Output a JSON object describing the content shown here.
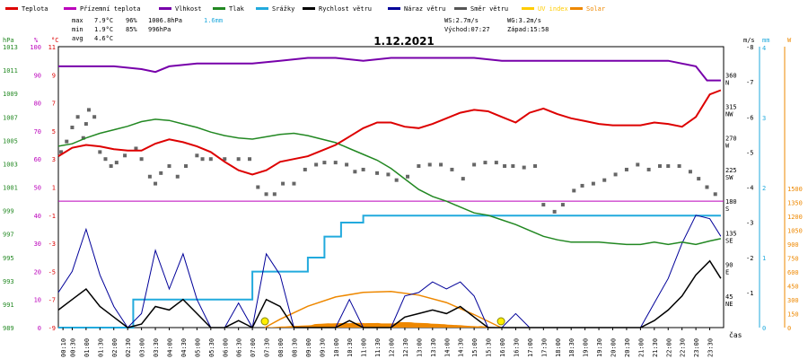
{
  "legend": [
    {
      "label": "Teplota",
      "color": "#dd0000"
    },
    {
      "label": "Přízemní teplota",
      "color": "#bb00bb"
    },
    {
      "label": "Vlhkost",
      "color": "#7700aa"
    },
    {
      "label": "Tlak",
      "color": "#228822"
    },
    {
      "label": "Srážky",
      "color": "#22aadd"
    },
    {
      "label": "Rychlost větru",
      "color": "#000000"
    },
    {
      "label": "Náraz větru",
      "color": "#000099"
    },
    {
      "label": "Směr větru",
      "color": "#555555"
    },
    {
      "label": "UV index",
      "color": "#ffcc00"
    },
    {
      "label": "Solar",
      "color": "#ee8800"
    }
  ],
  "stats": {
    "max_label": "max",
    "max_temp": "7.9°C",
    "max_hum": "96%",
    "max_press": "1006.8hPa",
    "max_rain": "1.6mm",
    "min_label": "min",
    "min_temp": "1.9°C",
    "min_hum": "85%",
    "min_press": "996hPa",
    "avg_label": "avg",
    "avg_temp": "4.6°C"
  },
  "wind_stats": {
    "ws": "WS:2.7m/s",
    "wg": "WG:3.2m/s",
    "sunrise": "Východ:07:27",
    "sunset": "Západ:15:58"
  },
  "chart_data": {
    "type": "line",
    "title": "1.12.2021",
    "xlabel": "čas",
    "x_ticks": [
      "00:10",
      "00:30",
      "01:00",
      "01:30",
      "02:00",
      "02:30",
      "03:00",
      "03:30",
      "04:00",
      "04:30",
      "05:00",
      "05:30",
      "06:00",
      "06:30",
      "07:00",
      "07:30",
      "08:00",
      "08:30",
      "09:00",
      "09:30",
      "10:00",
      "10:30",
      "11:00",
      "11:30",
      "12:00",
      "12:30",
      "13:00",
      "13:30",
      "14:00",
      "14:30",
      "15:00",
      "15:30",
      "16:00",
      "16:30",
      "17:00",
      "17:30",
      "18:00",
      "18:30",
      "19:00",
      "19:30",
      "20:00",
      "20:30",
      "21:00",
      "21:30",
      "22:00",
      "22:30",
      "23:00",
      "23:30"
    ],
    "axes": {
      "pressure": {
        "unit": "hPa",
        "ylim": [
          989,
          1013
        ],
        "ticks": [
          989,
          991,
          993,
          995,
          997,
          999,
          1001,
          1003,
          1005,
          1007,
          1009,
          1011,
          1013
        ]
      },
      "humidity": {
        "unit": "%",
        "ylim": [
          0,
          100
        ],
        "ticks": [
          0,
          10,
          20,
          30,
          40,
          50,
          60,
          70,
          80,
          90,
          100
        ]
      },
      "temperature": {
        "unit": "°C",
        "ylim": [
          -9,
          11
        ],
        "ticks": [
          -9,
          -7,
          -5,
          -3,
          -1,
          1,
          3,
          5,
          7,
          9,
          11
        ]
      },
      "wind_dir": {
        "ticks": [
          {
            "v": 45,
            "l": "NE"
          },
          {
            "v": 90,
            "l": "E"
          },
          {
            "v": 135,
            "l": "SE"
          },
          {
            "v": 180,
            "l": "S"
          },
          {
            "v": 225,
            "l": "SW"
          },
          {
            "v": 270,
            "l": "W"
          },
          {
            "v": 315,
            "l": "NW"
          },
          {
            "v": 360,
            "l": "N"
          }
        ]
      },
      "wind_speed": {
        "unit": "m/s",
        "ylim": [
          0,
          8
        ],
        "ticks": [
          1,
          2,
          3,
          4,
          5,
          6,
          7,
          8
        ]
      },
      "rain": {
        "unit": "mm",
        "ylim": [
          0,
          4
        ],
        "ticks": [
          0,
          1,
          2,
          3,
          4
        ]
      },
      "solar": {
        "unit": "W",
        "ylim": [
          0,
          1500
        ],
        "ticks": [
          0,
          150,
          300,
          450,
          600,
          750,
          900,
          1050,
          1200,
          1350,
          1500
        ]
      }
    },
    "ground_temp_value": 0,
    "sunrise_hour": 7.45,
    "sunset_hour": 15.97,
    "series": [
      {
        "name": "Teplota",
        "axis": "temperature",
        "color": "#dd0000",
        "x": [
          0,
          0.5,
          1,
          1.5,
          2,
          2.5,
          3,
          3.5,
          4,
          4.5,
          5,
          5.5,
          6,
          6.5,
          7,
          7.5,
          8,
          8.5,
          9,
          9.5,
          10,
          10.5,
          11,
          11.5,
          12,
          12.5,
          13,
          13.5,
          14,
          14.5,
          15,
          15.5,
          16,
          16.5,
          17,
          17.5,
          18,
          18.5,
          19,
          19.5,
          20,
          20.5,
          21,
          21.5,
          22,
          22.5,
          23,
          23.5,
          23.9
        ],
        "y": [
          3.2,
          3.8,
          4.0,
          3.9,
          3.7,
          3.6,
          3.6,
          4.1,
          4.4,
          4.2,
          3.9,
          3.5,
          2.8,
          2.2,
          1.9,
          2.2,
          2.8,
          3.0,
          3.2,
          3.6,
          4.0,
          4.6,
          5.2,
          5.6,
          5.6,
          5.3,
          5.2,
          5.5,
          5.9,
          6.3,
          6.5,
          6.4,
          6.0,
          5.6,
          6.3,
          6.6,
          6.2,
          5.9,
          5.7,
          5.5,
          5.4,
          5.4,
          5.4,
          5.6,
          5.5,
          5.3,
          6.0,
          7.6,
          7.9
        ]
      },
      {
        "name": "Vlhkost",
        "axis": "humidity",
        "color": "#7700aa",
        "x": [
          0,
          1,
          2,
          3,
          3.5,
          4,
          5,
          6,
          7,
          8,
          9,
          10,
          11,
          12,
          13,
          14,
          15,
          16,
          17,
          18,
          19,
          20,
          21,
          22,
          23,
          23.4,
          23.9
        ],
        "y": [
          93,
          93,
          93,
          92,
          91,
          93,
          94,
          94,
          94,
          95,
          96,
          96,
          95,
          96,
          96,
          96,
          96,
          95,
          95,
          95,
          95,
          95,
          95,
          95,
          93,
          88,
          88
        ]
      },
      {
        "name": "Tlak",
        "axis": "pressure",
        "color": "#228822",
        "x": [
          0,
          0.5,
          1,
          1.5,
          2,
          2.5,
          3,
          3.5,
          4,
          4.5,
          5,
          5.5,
          6,
          6.5,
          7,
          7.5,
          8,
          8.5,
          9,
          9.5,
          10,
          10.5,
          11,
          11.5,
          12,
          12.5,
          13,
          13.5,
          14,
          14.5,
          15,
          15.5,
          16,
          16.5,
          17,
          17.5,
          18,
          18.5,
          19,
          19.5,
          20,
          20.5,
          21,
          21.5,
          22,
          22.5,
          23,
          23.5,
          23.9
        ],
        "y": [
          1004.5,
          1004.7,
          1005.2,
          1005.6,
          1005.9,
          1006.2,
          1006.6,
          1006.8,
          1006.7,
          1006.4,
          1006.1,
          1005.7,
          1005.4,
          1005.2,
          1005.1,
          1005.3,
          1005.5,
          1005.6,
          1005.4,
          1005.1,
          1004.8,
          1004.3,
          1003.8,
          1003.3,
          1002.6,
          1001.7,
          1000.8,
          1000.2,
          999.8,
          999.3,
          998.8,
          998.6,
          998.2,
          997.8,
          997.3,
          996.8,
          996.5,
          996.3,
          996.3,
          996.3,
          996.2,
          996.1,
          996.1,
          996.3,
          996.1,
          996.3,
          996.1,
          996.4,
          996.6
        ]
      },
      {
        "name": "Srážky",
        "axis": "rain",
        "color": "#22aadd",
        "x": [
          0,
          2.7,
          2.7,
          7,
          7,
          8.3,
          8.3,
          9,
          9,
          9.6,
          9.6,
          10.2,
          10.2,
          11,
          11,
          11.9,
          11.9,
          23.9
        ],
        "y": [
          0,
          0,
          0.4,
          0.4,
          0.8,
          0.8,
          0.8,
          0.8,
          1.0,
          1.0,
          1.3,
          1.3,
          1.5,
          1.5,
          1.6,
          1.6,
          1.6,
          1.6
        ]
      },
      {
        "name": "Rychlost větru",
        "axis": "wind_speed",
        "color": "#000000",
        "x": [
          0,
          0.5,
          1,
          1.5,
          2,
          2.5,
          3,
          3.5,
          4,
          4.5,
          5,
          5.5,
          6,
          6.5,
          7,
          7.5,
          8,
          8.5,
          9,
          9.5,
          10,
          10.5,
          11,
          11.5,
          12,
          12.5,
          13,
          13.5,
          14,
          14.5,
          15,
          15.5,
          16,
          16.5,
          17,
          17.5,
          18,
          18.5,
          19,
          19.5,
          20,
          20.5,
          21,
          21.5,
          22,
          22.5,
          23,
          23.5,
          23.9
        ],
        "y": [
          0.5,
          0.8,
          1.1,
          0.6,
          0.3,
          0,
          0.1,
          0.6,
          0.5,
          0.8,
          0.4,
          0,
          0,
          0.2,
          0,
          0.8,
          0.6,
          0,
          0,
          0,
          0,
          0.2,
          0,
          0,
          0,
          0.3,
          0.4,
          0.5,
          0.4,
          0.6,
          0.3,
          0,
          0,
          0,
          0,
          0,
          0,
          0,
          0,
          0,
          0,
          0,
          0,
          0.2,
          0.5,
          0.9,
          1.5,
          1.9,
          1.4
        ]
      },
      {
        "name": "Náraz větru",
        "axis": "wind_speed",
        "color": "#000099",
        "x": [
          0,
          0.5,
          1,
          1.5,
          2,
          2.5,
          3,
          3.5,
          4,
          4.5,
          5,
          5.5,
          6,
          6.5,
          7,
          7.5,
          8,
          8.5,
          9,
          9.5,
          10,
          10.5,
          11,
          11.5,
          12,
          12.5,
          13,
          13.5,
          14,
          14.5,
          15,
          15.5,
          16,
          16.5,
          17,
          17.5,
          18,
          18.5,
          19,
          19.5,
          20,
          20.5,
          21,
          21.5,
          22,
          22.5,
          23,
          23.5,
          23.9
        ],
        "y": [
          1.0,
          1.6,
          2.8,
          1.5,
          0.6,
          0,
          0.4,
          2.2,
          1.1,
          2.1,
          0.8,
          0,
          0,
          0.7,
          0,
          2.1,
          1.5,
          0,
          0,
          0,
          0,
          0.8,
          0,
          0,
          0,
          0.9,
          1.0,
          1.3,
          1.1,
          1.3,
          0.9,
          0,
          0,
          0.4,
          0,
          0,
          0,
          0,
          0,
          0,
          0,
          0,
          0,
          0.7,
          1.4,
          2.4,
          3.2,
          3.1,
          2.6
        ]
      },
      {
        "name": "Solar",
        "axis": "solar",
        "color": "#ee8800",
        "x": [
          7.45,
          8,
          9,
          10,
          11,
          12,
          13,
          14,
          15,
          15.97
        ],
        "y": [
          0,
          90,
          230,
          330,
          380,
          390,
          350,
          270,
          140,
          0
        ]
      }
    ],
    "wind_dir_samples": [
      [
        0.1,
        250
      ],
      [
        0.3,
        265
      ],
      [
        0.5,
        285
      ],
      [
        0.7,
        300
      ],
      [
        0.9,
        270
      ],
      [
        1.0,
        290
      ],
      [
        1.1,
        310
      ],
      [
        1.3,
        300
      ],
      [
        1.5,
        250
      ],
      [
        1.7,
        240
      ],
      [
        1.9,
        230
      ],
      [
        2.1,
        235
      ],
      [
        2.4,
        245
      ],
      [
        2.8,
        255
      ],
      [
        3.0,
        240
      ],
      [
        3.3,
        215
      ],
      [
        3.5,
        205
      ],
      [
        3.7,
        220
      ],
      [
        4.0,
        230
      ],
      [
        4.3,
        215
      ],
      [
        4.6,
        230
      ],
      [
        5.0,
        245
      ],
      [
        5.2,
        240
      ],
      [
        5.5,
        240
      ],
      [
        6.0,
        240
      ],
      [
        6.5,
        240
      ],
      [
        6.9,
        240
      ],
      [
        7.2,
        200
      ],
      [
        7.5,
        190
      ],
      [
        7.8,
        190
      ],
      [
        8.1,
        205
      ],
      [
        8.5,
        205
      ],
      [
        8.9,
        225
      ],
      [
        9.3,
        232
      ],
      [
        9.6,
        235
      ],
      [
        10.0,
        235
      ],
      [
        10.4,
        232
      ],
      [
        10.7,
        222
      ],
      [
        11.0,
        225
      ],
      [
        11.5,
        220
      ],
      [
        11.9,
        218
      ],
      [
        12.2,
        210
      ],
      [
        12.6,
        215
      ],
      [
        13.0,
        230
      ],
      [
        13.4,
        232
      ],
      [
        13.8,
        232
      ],
      [
        14.2,
        225
      ],
      [
        14.6,
        212
      ],
      [
        15.0,
        232
      ],
      [
        15.4,
        235
      ],
      [
        15.8,
        235
      ],
      [
        16.1,
        230
      ],
      [
        16.4,
        230
      ],
      [
        16.8,
        228
      ],
      [
        17.2,
        230
      ],
      [
        17.5,
        175
      ],
      [
        17.9,
        165
      ],
      [
        18.2,
        175
      ],
      [
        18.6,
        195
      ],
      [
        18.9,
        202
      ],
      [
        19.3,
        205
      ],
      [
        19.7,
        210
      ],
      [
        20.1,
        218
      ],
      [
        20.5,
        225
      ],
      [
        20.9,
        232
      ],
      [
        21.3,
        225
      ],
      [
        21.7,
        230
      ],
      [
        22.0,
        230
      ],
      [
        22.4,
        230
      ],
      [
        22.8,
        222
      ],
      [
        23.1,
        212
      ],
      [
        23.4,
        200
      ],
      [
        23.7,
        190
      ]
    ]
  }
}
